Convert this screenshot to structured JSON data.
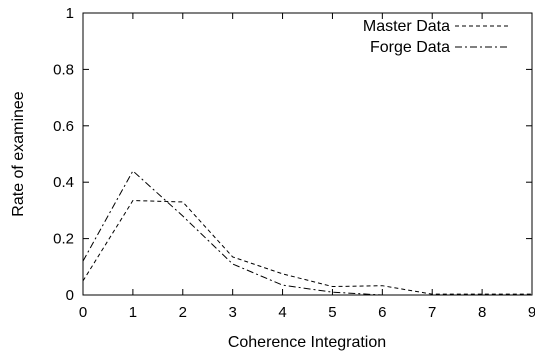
{
  "chart_data": {
    "type": "line",
    "xlabel": "Coherence Integration",
    "ylabel": "Rate of examinee",
    "x": [
      0,
      1,
      2,
      3,
      4,
      5,
      6,
      7,
      8,
      9
    ],
    "xticks": [
      "0",
      "1",
      "2",
      "3",
      "4",
      "5",
      "6",
      "7",
      "8",
      "9"
    ],
    "yticks": [
      "0",
      "0.2",
      "0.4",
      "0.6",
      "0.8",
      "1"
    ],
    "xlim": [
      0,
      9
    ],
    "ylim": [
      0,
      1
    ],
    "grid": false,
    "legend_position": "top-right",
    "series": [
      {
        "name": "Master Data",
        "dash": "dashed",
        "values": [
          0.05,
          0.335,
          0.33,
          0.135,
          0.075,
          0.03,
          0.033,
          0.003,
          0.003,
          0.003
        ]
      },
      {
        "name": "Forge Data",
        "dash": "dash-dot",
        "values": [
          0.12,
          0.44,
          0.28,
          0.11,
          0.035,
          0.01,
          0.0,
          0.0,
          0.0,
          0.0
        ]
      }
    ]
  }
}
